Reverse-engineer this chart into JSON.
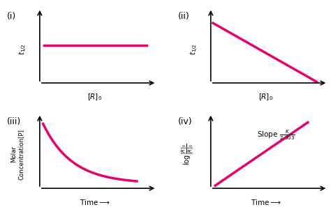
{
  "pink": "#E8006E",
  "bg": "#ffffff",
  "panels": [
    {
      "label": "(i)",
      "ylabel": "$t_{1/2}$",
      "xlabel": "$[R]_0$",
      "type": "flat_line"
    },
    {
      "label": "(ii)",
      "ylabel": "$t_{1/2}$",
      "xlabel": "$[R]_0$",
      "type": "diagonal_down"
    },
    {
      "label": "(iii)",
      "ylabel": "Molar\nConcentration[P]",
      "xlabel": "Time",
      "type": "decay_curve"
    },
    {
      "label": "(iv)",
      "ylabel": "$\\log\\frac{[R]_0}{[R]_0}$",
      "xlabel": "Time",
      "type": "linear_up",
      "annotation": "Slope $\\frac{K}{2.303}$"
    }
  ]
}
